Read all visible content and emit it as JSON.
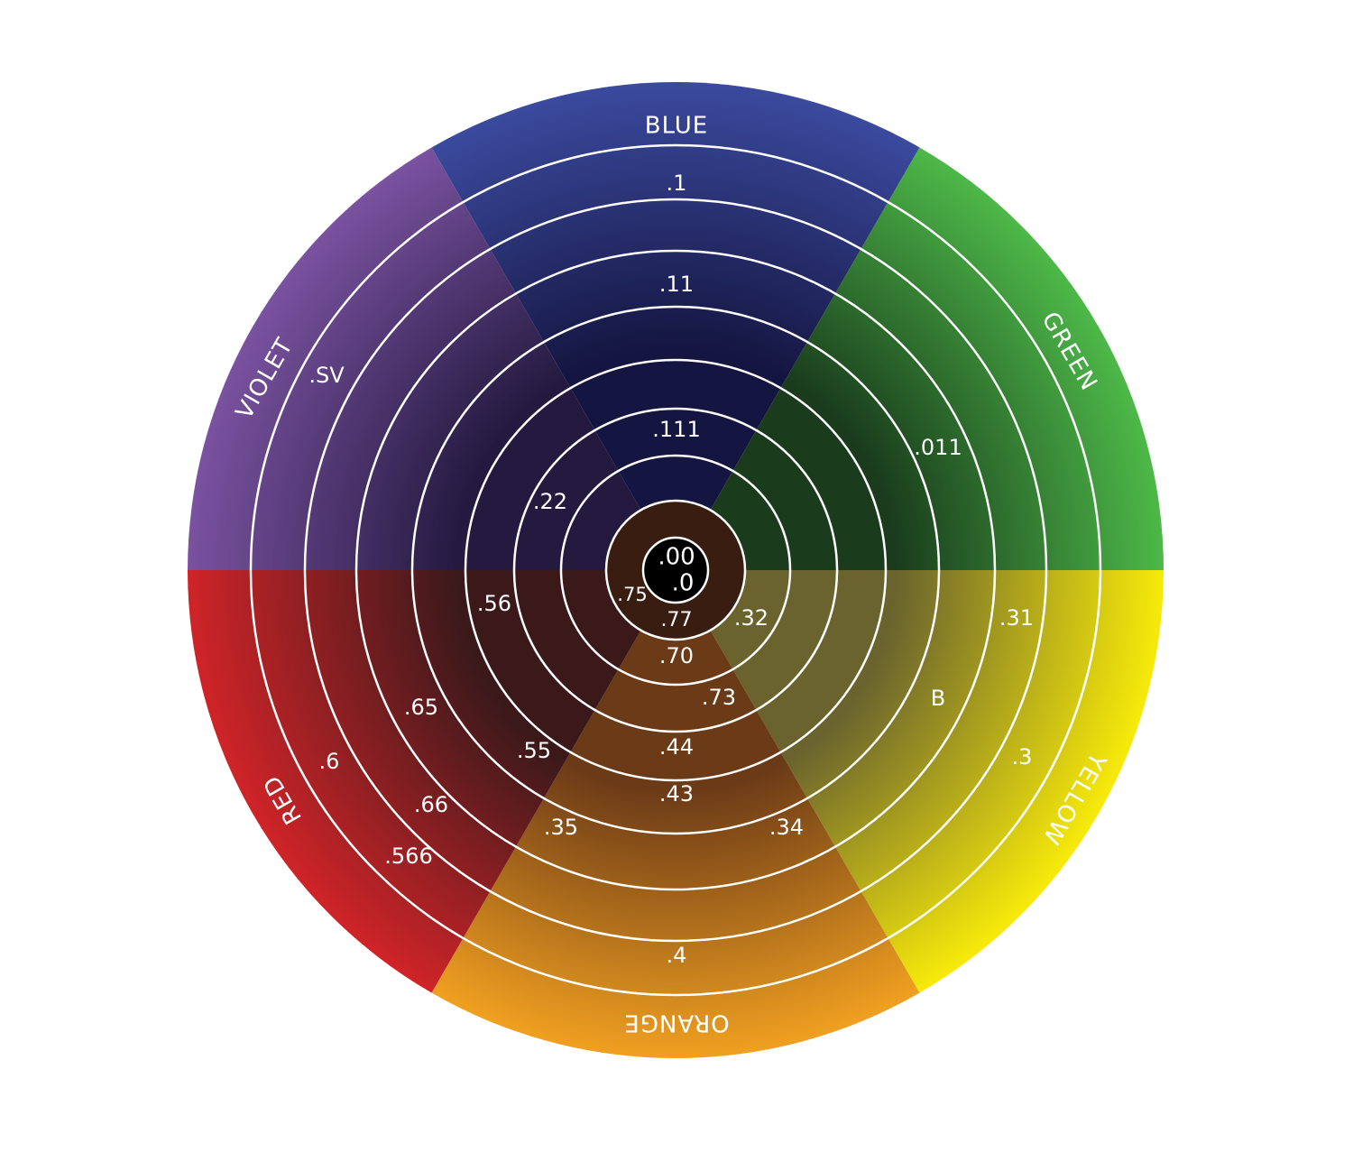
{
  "sectors": [
    {
      "label": "BLUE",
      "outer_color": "#3b4a9e",
      "inner_color": "#141540"
    },
    {
      "label": "GREEN",
      "outer_color": "#4db848",
      "inner_color": "#1a3c1d"
    },
    {
      "label": "YELLOW",
      "outer_color": "#f7ea0a",
      "inner_color": "#6a632e"
    },
    {
      "label": "ORANGE",
      "outer_color": "#f0a020",
      "inner_color": "#6b3a17"
    },
    {
      "label": "RED",
      "outer_color": "#cf2428",
      "inner_color": "#3b191b"
    },
    {
      "label": "VIOLET",
      "outer_color": "#7a52a0",
      "inner_color": "#241a40"
    }
  ],
  "values": {
    "blue": [
      ".1",
      ".11",
      ".111"
    ],
    "green": [
      ".011"
    ],
    "yellow": [
      ".32",
      ".31",
      "B",
      ".3",
      ".34"
    ],
    "orange": [
      ".70",
      ".73",
      ".44",
      ".43",
      ".4",
      ".35"
    ],
    "red": [
      ".56",
      ".65",
      ".55",
      ".6",
      ".66",
      ".566"
    ],
    "violet": [
      ".SV",
      ".22"
    ],
    "center": [
      ".75",
      ".77"
    ],
    "core": [
      ".00",
      ".0"
    ]
  },
  "colors": {
    "ring_line": "#ffffff",
    "center_disc": "#3a1d11",
    "core_disc": "#000000"
  }
}
